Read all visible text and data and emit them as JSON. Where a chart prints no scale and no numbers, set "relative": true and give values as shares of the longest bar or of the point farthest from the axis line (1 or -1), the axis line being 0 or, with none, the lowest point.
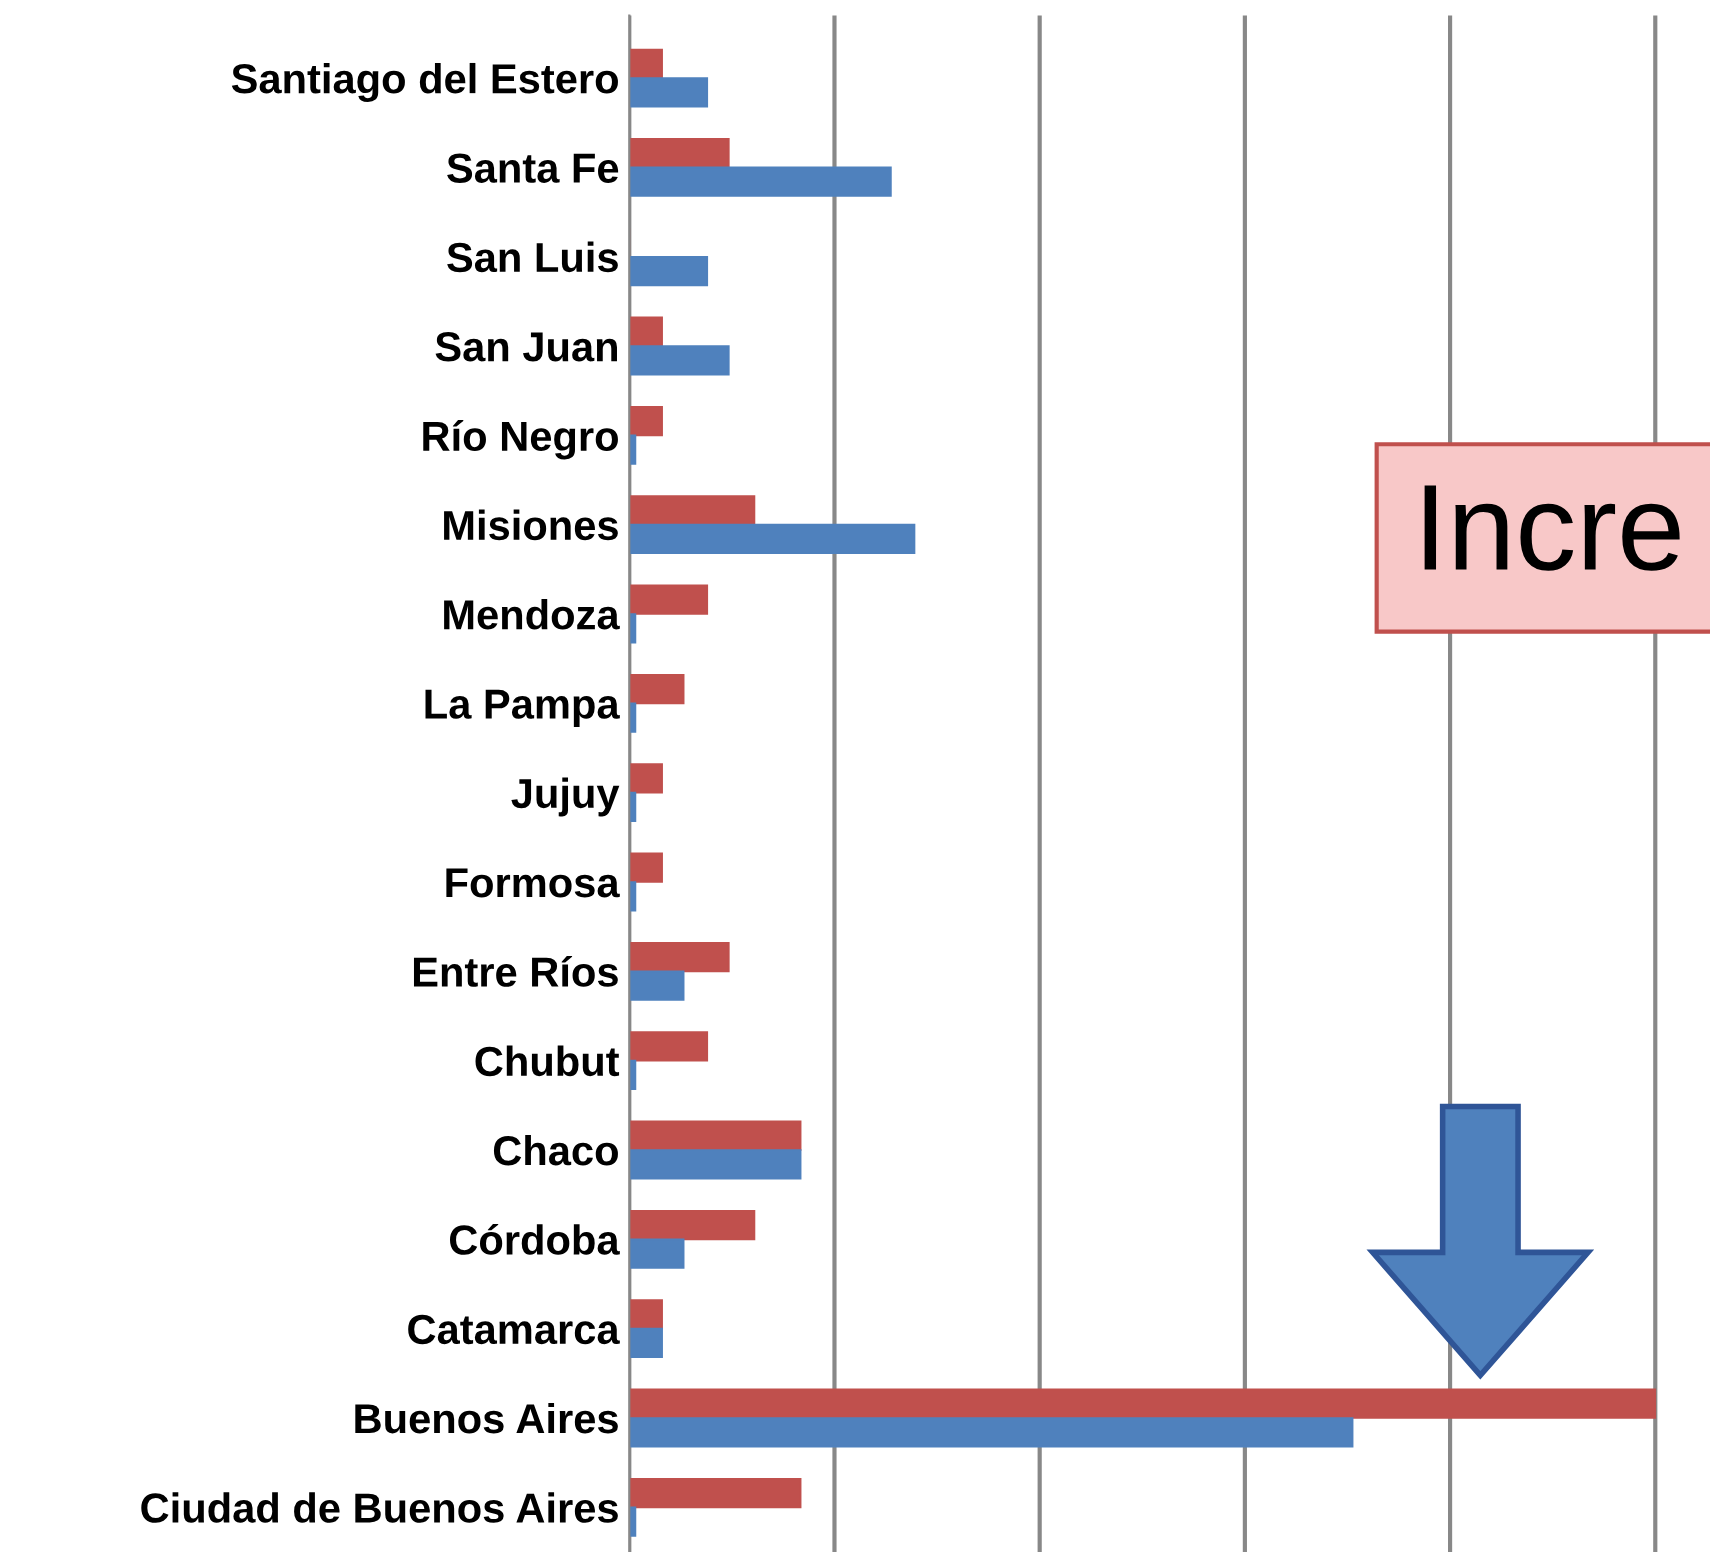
{
  "chart_data": {
    "type": "bar",
    "orientation": "horizontal",
    "relative": true,
    "grid": "x",
    "categories": [
      "Santiago del Estero",
      "Santa Fe",
      "San Luis",
      "San Juan",
      "Río Negro",
      "Misiones",
      "Mendoza",
      "La Pampa",
      "Jujuy",
      "Formosa",
      "Entre Ríos",
      "Chubut",
      "Chaco",
      "Córdoba",
      "Catamarca",
      "Buenos Aires",
      "Ciudad de Buenos Aires"
    ],
    "series": [
      {
        "color": "#c0504d",
        "values": [
          0.032,
          0.097,
          0,
          0.032,
          0.032,
          0.122,
          0.076,
          0.053,
          0.032,
          0.032,
          0.097,
          0.076,
          0.167,
          0.122,
          0.032,
          1,
          0.167
        ]
      },
      {
        "color": "#4f81bd",
        "values": [
          0.076,
          0.255,
          0.076,
          0.097,
          0.006,
          0.278,
          0.006,
          0.006,
          0.006,
          0.006,
          0.053,
          0.006,
          0.167,
          0.053,
          0.032,
          0.705,
          0.006
        ]
      }
    ],
    "annotations": [
      "Incre"
    ]
  }
}
